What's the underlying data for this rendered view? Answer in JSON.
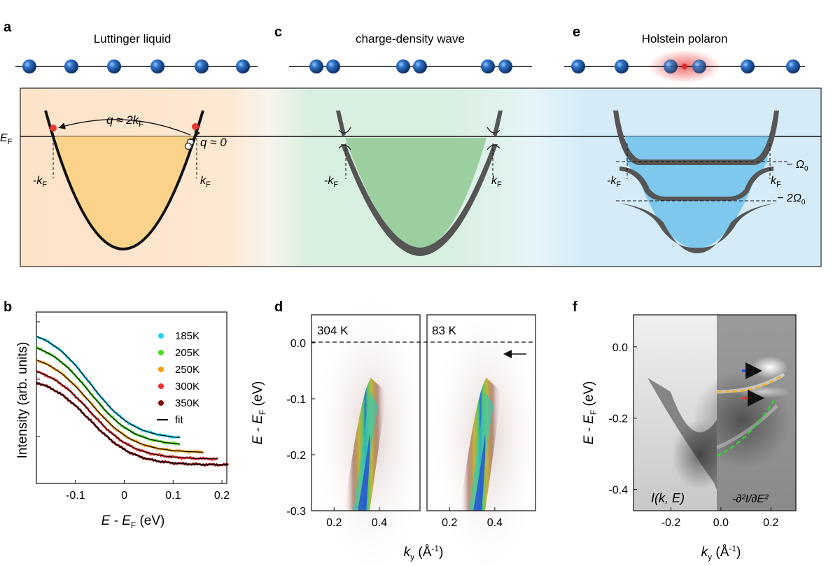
{
  "panels": {
    "a": {
      "letter": "a",
      "title": "Luttinger liquid",
      "ef": "E",
      "ef_sub": "F",
      "q1": "q ≈ 2k",
      "q1_sub": "F",
      "q2": "q ≈ 0",
      "kf_left": "-k",
      "kf_right": "k",
      "kf_sub": "F"
    },
    "c": {
      "letter": "c",
      "title": "charge-density wave",
      "kf_left": "-k",
      "kf_right": "k",
      "kf_sub": "F"
    },
    "e": {
      "letter": "e",
      "title": "Holstein polaron",
      "kf_left": "-k",
      "kf_right": "k",
      "kf_sub": "F",
      "omega1": "− Ω",
      "omega2": "− 2Ω",
      "omega_sub": "0"
    },
    "b": {
      "letter": "b",
      "ylabel": "Intensity (arb. units)",
      "xlabel": "E - E",
      "xlabel_sub": "F",
      "xlabel_unit": " (eV)",
      "fit_label": "fit"
    },
    "d": {
      "letter": "d",
      "ylabel": "E - E",
      "ylabel_sub": "F",
      "ylabel_unit": " (eV)",
      "xlabel": "k",
      "xlabel_sub": "y",
      "xlabel_unit": " (Å",
      "xlabel_sup": "-1",
      "xlabel_close": ")",
      "temp_left": "304 K",
      "temp_right": "83 K"
    },
    "f": {
      "letter": "f",
      "ylabel": "E - E",
      "ylabel_sub": "F",
      "ylabel_unit": " (eV)",
      "xlabel": "k",
      "xlabel_sub": "y",
      "xlabel_unit": " (Å",
      "xlabel_sup": "-1",
      "xlabel_close": ")",
      "label_left": "I(k, E)",
      "label_right": "-∂²I/∂E²"
    }
  },
  "chart_data": [
    {
      "type": "line",
      "panel": "b",
      "xlabel": "E - EF (eV)",
      "ylabel": "Intensity (arb. units)",
      "xlim": [
        -0.18,
        0.21
      ],
      "x_ticks": [
        "-0.1",
        "0",
        "0.1",
        "0.2"
      ],
      "x_tick_values": [
        -0.1,
        0,
        0.1,
        0.2
      ],
      "series": [
        {
          "name": "185K",
          "color": "#22d3ee",
          "x_end": 0.115,
          "offset": 1.0
        },
        {
          "name": "205K",
          "color": "#4ade20",
          "x_end": 0.115,
          "offset": 0.78
        },
        {
          "name": "250K",
          "color": "#f59e0b",
          "x_end": 0.165,
          "offset": 0.55
        },
        {
          "name": "300K",
          "color": "#ef2b2b",
          "x_end": 0.195,
          "offset": 0.33
        },
        {
          "name": "350K",
          "color": "#7f1010",
          "x_end": 0.215,
          "offset": 0.12
        }
      ],
      "fit_color": "#000000"
    },
    {
      "type": "heatmap",
      "panel": "d",
      "y_ticks": [
        "0.0",
        "-0.1",
        "-0.2",
        "-0.3"
      ],
      "y_tick_values": [
        0.0,
        -0.1,
        -0.2,
        -0.3
      ],
      "ylim": [
        -0.3,
        0.05
      ],
      "x_ticks": [
        "0.2",
        "0.4"
      ],
      "x_tick_values": [
        0.2,
        0.4
      ],
      "xlim": [
        0.1,
        0.58
      ]
    },
    {
      "type": "heatmap",
      "panel": "f",
      "y_ticks": [
        "0.0",
        "-0.2",
        "-0.4"
      ],
      "y_tick_values": [
        0.0,
        -0.2,
        -0.4
      ],
      "ylim": [
        -0.46,
        0.09
      ],
      "x_ticks": [
        "-0.2",
        "0.0",
        "0.2"
      ],
      "x_tick_values": [
        -0.2,
        0.0,
        0.2
      ],
      "xlim": [
        -0.35,
        0.3
      ]
    }
  ],
  "colors": {
    "luttinger_fill": "#fbd38a",
    "cdw_fill": "#9ccf9f",
    "polaron_fill": "#7ec8ee",
    "atom": "#1f5fa8",
    "dispersion": "#111111"
  }
}
